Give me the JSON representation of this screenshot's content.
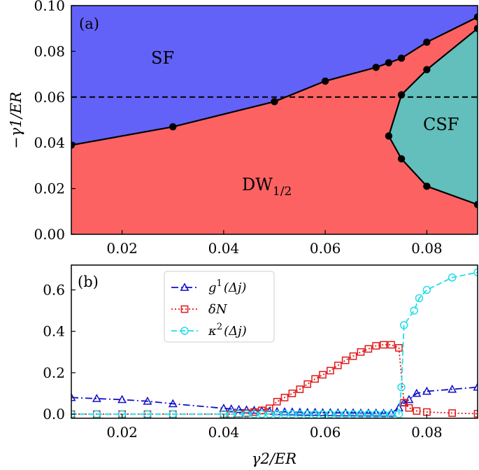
{
  "chart_data": [
    {
      "panel": "(a)",
      "type": "area",
      "xlabel": "γ2/ER",
      "ylabel": "−γ1/ER",
      "xlim": [
        0.01,
        0.09
      ],
      "ylim": [
        0.0,
        0.1
      ],
      "xticks": [
        0.02,
        0.04,
        0.06,
        0.08
      ],
      "xtick_labels": [
        "0.02",
        "0.04",
        "0.06",
        "0.08"
      ],
      "yticks": [
        0.0,
        0.02,
        0.04,
        0.06,
        0.08,
        0.1
      ],
      "ytick_labels": [
        "0.00",
        "0.02",
        "0.04",
        "0.06",
        "0.08",
        "0.10"
      ],
      "regions": [
        {
          "name": "SF",
          "color": "#6262f8"
        },
        {
          "name": "DW1/2",
          "color": "#fc6262"
        },
        {
          "name": "CSF",
          "color": "#62bfbb"
        }
      ],
      "region_labels": {
        "sf": "SF",
        "dw_main": "DW",
        "dw_sub": "1/2",
        "csf": "CSF"
      },
      "upper_boundary": {
        "x": [
          0.01,
          0.03,
          0.05,
          0.06,
          0.07,
          0.0725,
          0.075,
          0.08,
          0.09
        ],
        "y": [
          0.039,
          0.047,
          0.058,
          0.067,
          0.073,
          0.075,
          0.077,
          0.084,
          0.095
        ]
      },
      "csf_boundary": {
        "x": [
          0.09,
          0.08,
          0.075,
          0.0725,
          0.075,
          0.08,
          0.09
        ],
        "y": [
          0.09,
          0.072,
          0.061,
          0.043,
          0.033,
          0.021,
          0.013
        ]
      },
      "dashed_line_y": 0.06
    },
    {
      "panel": "(b)",
      "type": "line",
      "xlabel": "γ2/ER",
      "xlim": [
        0.01,
        0.09
      ],
      "ylim": [
        -0.02,
        0.72
      ],
      "xticks": [
        0.02,
        0.04,
        0.06,
        0.08
      ],
      "xtick_labels": [
        "0.02",
        "0.04",
        "0.06",
        "0.08"
      ],
      "yticks": [
        0.0,
        0.2,
        0.4,
        0.6
      ],
      "ytick_labels": [
        "0.0",
        "0.2",
        "0.4",
        "0.6"
      ],
      "legend_position": "top-center",
      "series": [
        {
          "name": "g1(Δj)",
          "label_main": "g",
          "label_sup": "1",
          "label_rest": "(Δj)",
          "color": "#1010c8",
          "marker": "triangle",
          "line": "dashdot",
          "x": [
            0.01,
            0.015,
            0.02,
            0.025,
            0.03,
            0.04,
            0.0415,
            0.043,
            0.0445,
            0.046,
            0.0475,
            0.049,
            0.0505,
            0.052,
            0.0535,
            0.055,
            0.0565,
            0.058,
            0.0595,
            0.061,
            0.0625,
            0.064,
            0.0655,
            0.067,
            0.0685,
            0.07,
            0.0715,
            0.073,
            0.0745,
            0.0755,
            0.0765,
            0.078,
            0.08,
            0.085,
            0.09
          ],
          "y": [
            0.08,
            0.075,
            0.07,
            0.062,
            0.05,
            0.028,
            0.025,
            0.022,
            0.02,
            0.018,
            0.016,
            0.014,
            0.012,
            0.011,
            0.01,
            0.009,
            0.008,
            0.008,
            0.007,
            0.007,
            0.006,
            0.006,
            0.006,
            0.005,
            0.005,
            0.005,
            0.004,
            0.004,
            0.03,
            0.055,
            0.07,
            0.1,
            0.11,
            0.12,
            0.13
          ]
        },
        {
          "name": "δN",
          "label_main": "δN",
          "label_sup": "",
          "label_rest": "",
          "color": "#e01818",
          "marker": "square",
          "line": "dotted",
          "x": [
            0.01,
            0.015,
            0.02,
            0.025,
            0.03,
            0.04,
            0.0415,
            0.043,
            0.0445,
            0.046,
            0.0475,
            0.049,
            0.0505,
            0.052,
            0.0535,
            0.055,
            0.0565,
            0.058,
            0.0595,
            0.061,
            0.0625,
            0.064,
            0.0655,
            0.067,
            0.0685,
            0.07,
            0.0715,
            0.073,
            0.0745,
            0.0755,
            0.0765,
            0.078,
            0.08,
            0.085,
            0.09
          ],
          "y": [
            0.0,
            0.0,
            0.0,
            0.0,
            0.0,
            0.0,
            0.0,
            0.002,
            0.005,
            0.01,
            0.018,
            0.028,
            0.06,
            0.08,
            0.1,
            0.12,
            0.145,
            0.17,
            0.19,
            0.21,
            0.235,
            0.26,
            0.28,
            0.3,
            0.315,
            0.33,
            0.335,
            0.335,
            0.32,
            0.055,
            0.03,
            0.015,
            0.01,
            0.005,
            0.002
          ]
        },
        {
          "name": "κ2(Δj)",
          "label_main": "κ",
          "label_sup": "2",
          "label_rest": "(Δj)",
          "color": "#22dde8",
          "marker": "circle",
          "line": "dashed",
          "x": [
            0.01,
            0.015,
            0.02,
            0.025,
            0.03,
            0.04,
            0.0415,
            0.043,
            0.0445,
            0.046,
            0.0475,
            0.049,
            0.0505,
            0.052,
            0.0535,
            0.055,
            0.0565,
            0.058,
            0.0595,
            0.061,
            0.0625,
            0.064,
            0.0655,
            0.067,
            0.0685,
            0.07,
            0.0715,
            0.073,
            0.0745,
            0.075,
            0.0755,
            0.0775,
            0.0785,
            0.08,
            0.085,
            0.09
          ],
          "y": [
            0.0,
            0.0,
            0.0,
            0.0,
            0.0,
            0.0,
            0.0,
            0.0,
            0.0,
            0.0,
            0.0,
            0.0,
            0.0,
            0.0,
            0.0,
            0.0,
            0.0,
            0.0,
            0.0,
            0.0,
            0.0,
            0.0,
            0.0,
            0.0,
            0.0,
            0.0,
            0.0,
            0.0,
            0.0,
            0.13,
            0.43,
            0.5,
            0.56,
            0.6,
            0.66,
            0.685
          ]
        }
      ]
    }
  ]
}
